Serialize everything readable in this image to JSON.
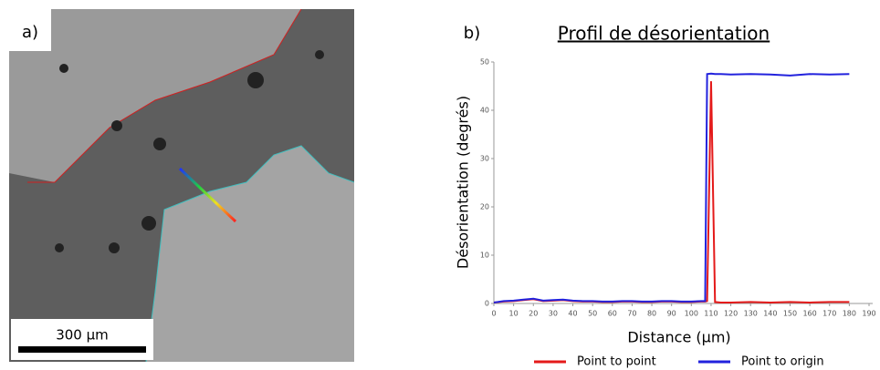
{
  "image_panel": {
    "label": "a)",
    "scale_bar_label": "300 µm"
  },
  "chart_data": {
    "type": "line",
    "panel_label": "b)",
    "title": "Profil de désorientation",
    "x_label": "Distance (µm)",
    "y_label": "Désorientation (degrés)",
    "x": [
      0,
      5,
      10,
      15,
      20,
      25,
      30,
      35,
      40,
      45,
      50,
      55,
      60,
      65,
      70,
      75,
      80,
      85,
      90,
      95,
      100,
      105,
      107,
      108,
      110,
      112,
      115,
      120,
      130,
      140,
      150,
      160,
      170,
      180
    ],
    "series": [
      {
        "name": "Point to point",
        "color": "#e41a1a",
        "values": [
          0.2,
          0.4,
          0.5,
          0.7,
          0.9,
          0.5,
          0.6,
          0.7,
          0.5,
          0.4,
          0.4,
          0.3,
          0.3,
          0.4,
          0.4,
          0.3,
          0.3,
          0.4,
          0.4,
          0.3,
          0.3,
          0.4,
          0.4,
          0.5,
          46,
          0.3,
          0.2,
          0.2,
          0.3,
          0.2,
          0.3,
          0.2,
          0.3,
          0.3
        ]
      },
      {
        "name": "Point to origin",
        "color": "#2222dd",
        "values": [
          0.2,
          0.5,
          0.6,
          0.8,
          1.0,
          0.6,
          0.7,
          0.8,
          0.6,
          0.5,
          0.5,
          0.4,
          0.4,
          0.5,
          0.5,
          0.4,
          0.4,
          0.5,
          0.5,
          0.4,
          0.4,
          0.5,
          0.5,
          47.5,
          47.6,
          47.5,
          47.5,
          47.4,
          47.5,
          47.4,
          47.2,
          47.5,
          47.4,
          47.5
        ]
      }
    ],
    "xlim": [
      0,
      190
    ],
    "xticks": [
      0,
      10,
      20,
      30,
      40,
      50,
      60,
      70,
      80,
      90,
      100,
      110,
      120,
      130,
      140,
      150,
      160,
      170,
      180,
      190
    ],
    "ylim": [
      0,
      50
    ],
    "yticks": [
      0,
      10,
      20,
      30,
      40,
      50
    ],
    "grid": false,
    "legend": "bottom"
  }
}
